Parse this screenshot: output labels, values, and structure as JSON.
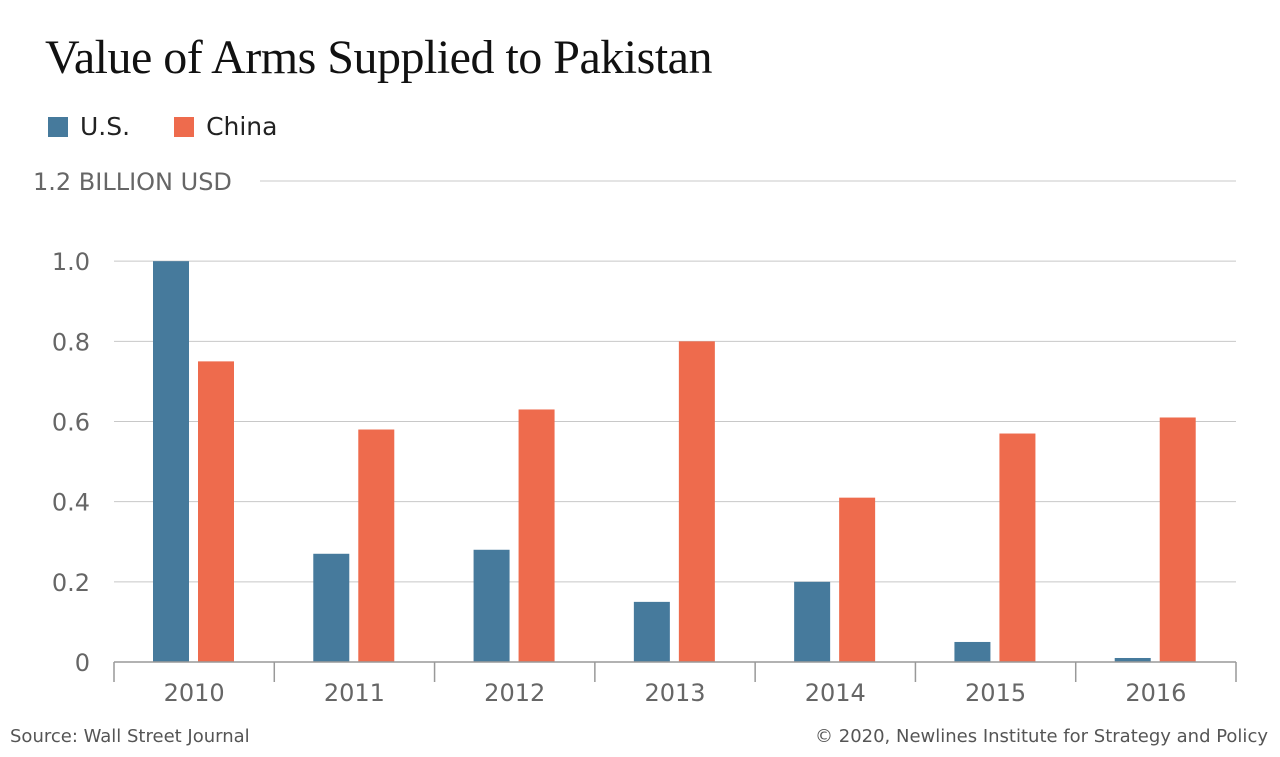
{
  "chart_data": {
    "type": "bar",
    "title": "Value of Arms Supplied to Pakistan",
    "categories": [
      "2010",
      "2011",
      "2012",
      "2013",
      "2014",
      "2015",
      "2016"
    ],
    "series": [
      {
        "name": "U.S.",
        "color": "#467a9c",
        "values": [
          1.0,
          0.27,
          0.28,
          0.15,
          0.2,
          0.05,
          0.01
        ]
      },
      {
        "name": "China",
        "color": "#ee6b4d",
        "values": [
          0.75,
          0.58,
          0.63,
          0.8,
          0.41,
          0.57,
          0.61
        ]
      }
    ],
    "ylabel": "",
    "ylim": [
      0,
      1.2
    ],
    "yticks": [
      "0",
      "0.2",
      "0.4",
      "0.6",
      "0.8",
      "1.0",
      "1.2 BILLION USD"
    ],
    "ytick_values": [
      0,
      0.2,
      0.4,
      0.6,
      0.8,
      1.0,
      1.2
    ],
    "grid": true,
    "legend": "top-left"
  },
  "footer": {
    "source": "Source: Wall Street Journal",
    "copyright": "© 2020, Newlines Institute for Strategy and Policy"
  }
}
